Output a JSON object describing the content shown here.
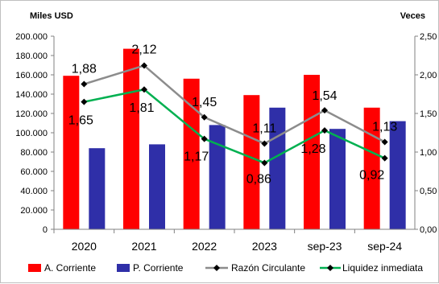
{
  "chart_data": {
    "type": "bar",
    "left_axis_title": "Miles USD",
    "right_axis_title": "Veces",
    "categories": [
      "2020",
      "2021",
      "2022",
      "2023",
      "sep-23",
      "sep-24"
    ],
    "left_ylim": [
      0,
      200000
    ],
    "left_ticks": [
      "0",
      "20.000",
      "40.000",
      "60.000",
      "80.000",
      "100.000",
      "120.000",
      "140.000",
      "160.000",
      "180.000",
      "200.000"
    ],
    "right_ylim": [
      0,
      2.5
    ],
    "right_ticks": [
      "0,00",
      "0,50",
      "1,00",
      "1,50",
      "2,00",
      "2,50"
    ],
    "grid": false,
    "legend_position": "bottom",
    "bar_series": [
      {
        "name": "A. Corriente",
        "color": "#ff0000",
        "values": [
          159000,
          187000,
          156000,
          139000,
          160000,
          126000
        ]
      },
      {
        "name": "P. Corriente",
        "color": "#2f2fa8",
        "values": [
          84000,
          88000,
          108000,
          126000,
          104000,
          112000
        ]
      }
    ],
    "line_series": [
      {
        "name": "Razón Circulante",
        "color": "#8c8c8c",
        "values": [
          1.88,
          2.12,
          1.45,
          1.11,
          1.54,
          1.13
        ],
        "labels": [
          "1,88",
          "2,12",
          "1,45",
          "1,11",
          "1,54",
          "1,13"
        ]
      },
      {
        "name": "Liquidez inmediata",
        "color": "#00b050",
        "values": [
          1.65,
          1.81,
          1.17,
          0.86,
          1.28,
          0.92
        ],
        "labels": [
          "1,65",
          "1,81",
          "1,17",
          "0,86",
          "1,28",
          "0,92"
        ]
      }
    ]
  }
}
